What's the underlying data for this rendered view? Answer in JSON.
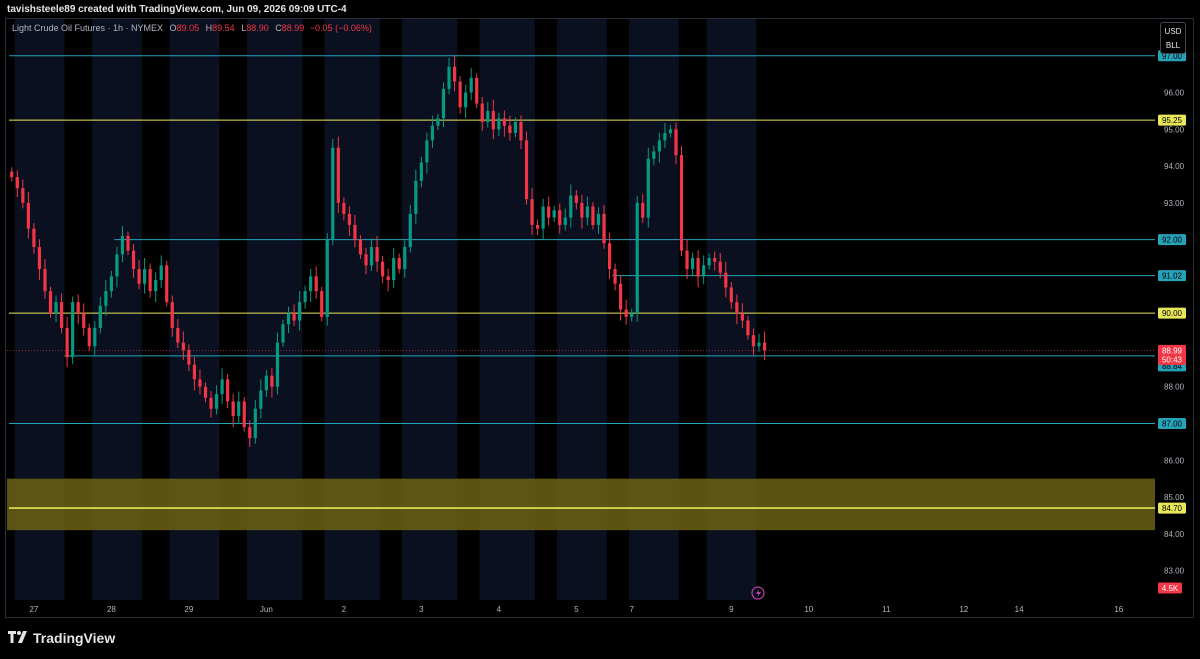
{
  "header": {
    "credit": "tavishsteele89 created with TradingView.com, Jun 09, 2026 09:09 UTC-4"
  },
  "legend": {
    "symbol": "Light Crude Oil Futures · 1h · NYMEX",
    "o_label": "O",
    "o": "89.05",
    "h_label": "H",
    "h": "89.54",
    "l_label": "L",
    "l": "88.90",
    "c_label": "C",
    "c": "88.99",
    "change": "−0.05 (−0.06%)"
  },
  "currency": {
    "currency": "USD",
    "unit": "BLL"
  },
  "footer": {
    "brand": "TradingView"
  },
  "colors": {
    "up": "#089981",
    "down": "#f23645",
    "cyan_line": "#26a3b8",
    "yellow_line": "#e8e65a",
    "zone": "#6b6215"
  },
  "chart_data": {
    "type": "candlestick",
    "interval": "1h",
    "ylim": [
      82.2,
      98.0
    ],
    "y_ticks": [
      83,
      84,
      85,
      86,
      88,
      93,
      94,
      95,
      96
    ],
    "x_ticks": [
      {
        "label": "27",
        "bar": 4
      },
      {
        "label": "28",
        "bar": 18
      },
      {
        "label": "29",
        "bar": 32
      },
      {
        "label": "Jun",
        "bar": 46
      },
      {
        "label": "2",
        "bar": 60
      },
      {
        "label": "3",
        "bar": 74
      },
      {
        "label": "4",
        "bar": 88
      },
      {
        "label": "5",
        "bar": 102
      },
      {
        "label": "7",
        "bar": 112
      },
      {
        "label": "9",
        "bar": 130
      },
      {
        "label": "10",
        "bar": 144
      },
      {
        "label": "11",
        "bar": 158
      },
      {
        "label": "12",
        "bar": 172
      },
      {
        "label": "14",
        "bar": 182
      },
      {
        "label": "16",
        "bar": 200
      }
    ],
    "horizontal_levels": [
      {
        "price": 97.0,
        "label": "97.00",
        "color": "cyan",
        "start_bar": 0
      },
      {
        "price": 95.25,
        "label": "95.25",
        "color": "yellow",
        "start_bar": 0
      },
      {
        "price": 92.0,
        "label": "92.00",
        "color": "cyan",
        "start_bar": 19
      },
      {
        "price": 91.02,
        "label": "91.02",
        "color": "cyan",
        "start_bar": 109
      },
      {
        "price": 90.0,
        "label": "90.00",
        "color": "yellow",
        "start_bar": 0
      },
      {
        "price": 88.84,
        "label": "88.84",
        "color": "cyan",
        "start_bar": 10
      },
      {
        "price": 87.0,
        "label": "87.00",
        "color": "cyan",
        "start_bar": 0
      },
      {
        "price": 84.7,
        "label": "84.70",
        "color": "yellow",
        "start_bar": 0
      }
    ],
    "zone": {
      "from": 84.1,
      "to": 85.5
    },
    "last_price": {
      "price": 88.99,
      "label": "88.99",
      "countdown": "50:43"
    },
    "volume_badge": "4.5K",
    "closes": [
      93.7,
      93.4,
      93.0,
      92.3,
      91.8,
      91.2,
      90.6,
      90.0,
      90.3,
      89.6,
      88.8,
      90.3,
      90.0,
      89.6,
      89.1,
      89.6,
      90.2,
      90.6,
      91.0,
      91.6,
      92.1,
      91.7,
      91.2,
      90.8,
      91.2,
      90.6,
      90.9,
      91.3,
      90.3,
      89.6,
      89.2,
      89.0,
      88.6,
      88.2,
      88.0,
      87.7,
      87.4,
      87.8,
      88.2,
      87.6,
      87.2,
      87.6,
      86.9,
      86.6,
      87.4,
      87.9,
      88.3,
      88.0,
      89.2,
      89.7,
      90.0,
      89.8,
      90.3,
      90.6,
      91.0,
      90.6,
      89.9,
      92.0,
      94.5,
      93.0,
      92.7,
      92.4,
      92.0,
      91.6,
      91.3,
      91.8,
      91.4,
      91.0,
      90.9,
      91.5,
      91.2,
      91.8,
      92.7,
      93.6,
      94.1,
      94.7,
      95.1,
      95.3,
      96.1,
      96.7,
      96.3,
      95.6,
      96.0,
      96.4,
      95.7,
      95.2,
      95.5,
      95.0,
      95.3,
      95.1,
      94.9,
      95.2,
      94.7,
      93.1,
      92.4,
      92.3,
      92.9,
      92.6,
      92.8,
      92.4,
      92.6,
      93.2,
      93.0,
      92.6,
      92.9,
      92.4,
      92.7,
      91.9,
      91.2,
      90.8,
      90.1,
      89.9,
      90.0,
      93.0,
      92.6,
      94.2,
      94.4,
      94.7,
      94.9,
      95.0,
      94.3,
      91.7,
      91.2,
      91.5,
      91.0,
      91.3,
      91.5,
      91.4,
      91.1,
      90.7,
      90.3,
      90.0,
      89.8,
      89.4,
      89.1,
      89.2,
      88.99
    ],
    "background_columns": [
      {
        "from_bar": 1,
        "to_bar": 10
      },
      {
        "from_bar": 15,
        "to_bar": 24
      },
      {
        "from_bar": 29,
        "to_bar": 38
      },
      {
        "from_bar": 43,
        "to_bar": 53
      },
      {
        "from_bar": 57,
        "to_bar": 67
      },
      {
        "from_bar": 71,
        "to_bar": 81
      },
      {
        "from_bar": 85,
        "to_bar": 95
      },
      {
        "from_bar": 99,
        "to_bar": 108
      },
      {
        "from_bar": 112,
        "to_bar": 121
      },
      {
        "from_bar": 126,
        "to_bar": 135
      }
    ]
  }
}
